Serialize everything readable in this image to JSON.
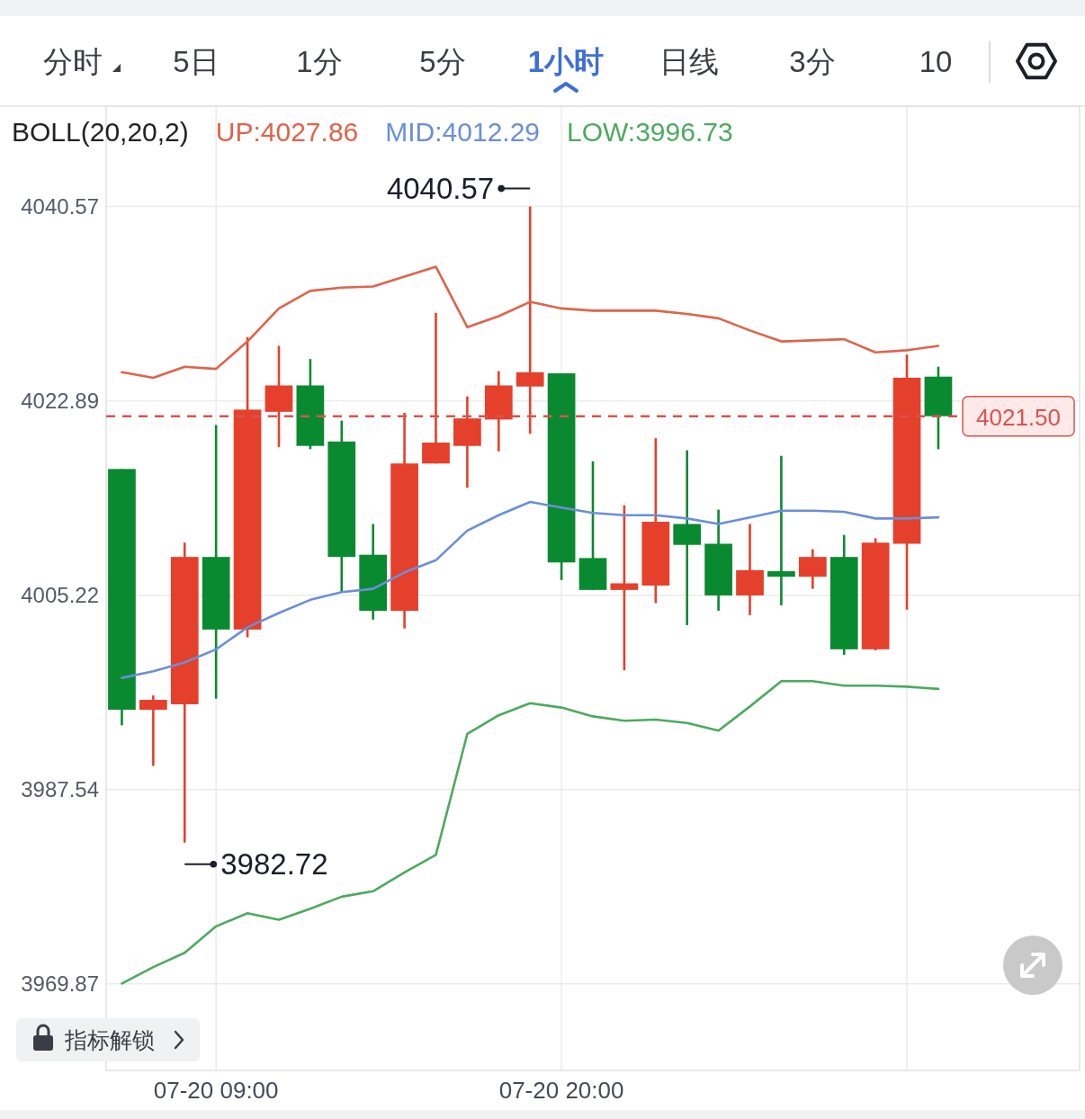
{
  "chart_data": {
    "type": "candlestick",
    "legend_title": "BOLL(20,20,2)",
    "categories": [
      null,
      null,
      null,
      "07-20 09:00",
      null,
      null,
      null,
      null,
      null,
      null,
      null,
      null,
      null,
      null,
      "07-20 20:00",
      null,
      null,
      null,
      null,
      null,
      null,
      null,
      null,
      null,
      null,
      null,
      null
    ],
    "ohlc": [
      [
        4016.7,
        4016.7,
        3993.4,
        3994.8
      ],
      [
        3994.8,
        3996.1,
        3989.7,
        3995.7
      ],
      [
        3995.3,
        4010.0,
        3982.72,
        4008.7
      ],
      [
        4008.7,
        4020.7,
        3995.8,
        4002.1
      ],
      [
        4002.1,
        4028.7,
        4001.4,
        4022.1
      ],
      [
        4021.9,
        4027.9,
        4018.7,
        4024.3
      ],
      [
        4024.3,
        4026.7,
        4018.5,
        4018.8
      ],
      [
        4019.2,
        4021.1,
        4005.5,
        4008.7
      ],
      [
        4008.9,
        4011.7,
        4003.0,
        4003.8
      ],
      [
        4003.8,
        4021.8,
        4002.2,
        4017.2
      ],
      [
        4017.2,
        4030.9,
        4017.2,
        4019.1
      ],
      [
        4018.8,
        4023.3,
        4015.0,
        4021.3
      ],
      [
        4021.2,
        4025.6,
        4018.3,
        4024.3
      ],
      [
        4024.2,
        4040.57,
        4019.9,
        4025.5
      ],
      [
        4025.4,
        4025.4,
        4006.6,
        4008.2
      ],
      [
        4008.6,
        4017.4,
        4005.7,
        4005.7
      ],
      [
        4005.7,
        4013.4,
        3998.4,
        4006.3
      ],
      [
        4006.1,
        4019.5,
        4004.5,
        4011.9
      ],
      [
        4011.7,
        4018.4,
        4002.5,
        4009.8
      ],
      [
        4009.9,
        4013.0,
        4003.8,
        4005.2
      ],
      [
        4005.2,
        4011.7,
        4003.4,
        4007.5
      ],
      [
        4007.4,
        4017.9,
        4004.3,
        4006.9
      ],
      [
        4006.9,
        4009.4,
        4005.8,
        4008.7
      ],
      [
        4008.7,
        4010.7,
        3999.8,
        4000.3
      ],
      [
        4000.3,
        4010.4,
        4000.2,
        4010.0
      ],
      [
        4009.9,
        4027.1,
        4003.9,
        4025.0
      ],
      [
        4025.1,
        4026.0,
        4018.5,
        4021.5
      ]
    ],
    "colors": [
      "#0a8a30",
      "#e5402b",
      "#e5402b",
      "#0a8a30",
      "#e5402b",
      "#e5402b",
      "#0a8a30",
      "#0a8a30",
      "#0a8a30",
      "#e5402b",
      "#e5402b",
      "#e5402b",
      "#e5402b",
      "#e5402b",
      "#0a8a30",
      "#0a8a30",
      "#e5402b",
      "#e5402b",
      "#0a8a30",
      "#0a8a30",
      "#e5402b",
      "#0a8a30",
      "#e5402b",
      "#0a8a30",
      "#e5402b",
      "#e5402b",
      "#0a8a30"
    ],
    "series": [
      {
        "name": "UP:4027.86",
        "type": "line",
        "color": "#e0634a",
        "values": [
          4025.5,
          4025.0,
          4026.0,
          4025.8,
          4028.3,
          4031.3,
          4032.9,
          4033.2,
          4033.3,
          4034.2,
          4035.1,
          4029.6,
          4030.6,
          4031.9,
          4031.3,
          4031.1,
          4031.1,
          4031.1,
          4030.8,
          4030.4,
          4029.3,
          4028.3,
          4028.4,
          4028.5,
          4027.3,
          4027.5,
          4027.9
        ]
      },
      {
        "name": "MID:4012.29",
        "type": "line",
        "color": "#6a8fd8",
        "values": [
          3997.7,
          3998.3,
          3999.1,
          4000.3,
          4002.3,
          4003.6,
          4004.8,
          4005.5,
          4005.8,
          4007.3,
          4008.4,
          4011.1,
          4012.5,
          4013.7,
          4013.2,
          4012.7,
          4012.5,
          4012.5,
          4012.2,
          4011.7,
          4012.3,
          4012.9,
          4012.9,
          4012.8,
          4012.2,
          4012.2,
          4012.3
        ]
      },
      {
        "name": "LOW:3996.73",
        "type": "line",
        "color": "#4caa5e",
        "values": [
          3969.9,
          3971.4,
          3972.7,
          3975.1,
          3976.3,
          3975.7,
          3976.7,
          3977.8,
          3978.3,
          3980.0,
          3981.6,
          3992.6,
          3994.3,
          3995.4,
          3995.0,
          3994.2,
          3993.8,
          3993.9,
          3993.6,
          3992.9,
          3995.1,
          3997.4,
          3997.4,
          3997.0,
          3997.0,
          3996.9,
          3996.7
        ]
      }
    ],
    "ylim": [
      3962.0,
      4049.7
    ],
    "yticks": [
      4040.57,
      4022.89,
      4005.22,
      3987.54,
      3969.87
    ],
    "grid": true,
    "legend": "top",
    "ref_lines": [
      {
        "axis": "y",
        "value": 4021.5,
        "label": "4021.50",
        "color": "#d9534f",
        "line_style": "dashed"
      }
    ],
    "annotations": [
      "分时",
      "5日",
      "1分",
      "5分",
      "1小时",
      "日线",
      "3分",
      "10",
      "4040.57",
      "3982.72",
      "指标解锁"
    ]
  }
}
